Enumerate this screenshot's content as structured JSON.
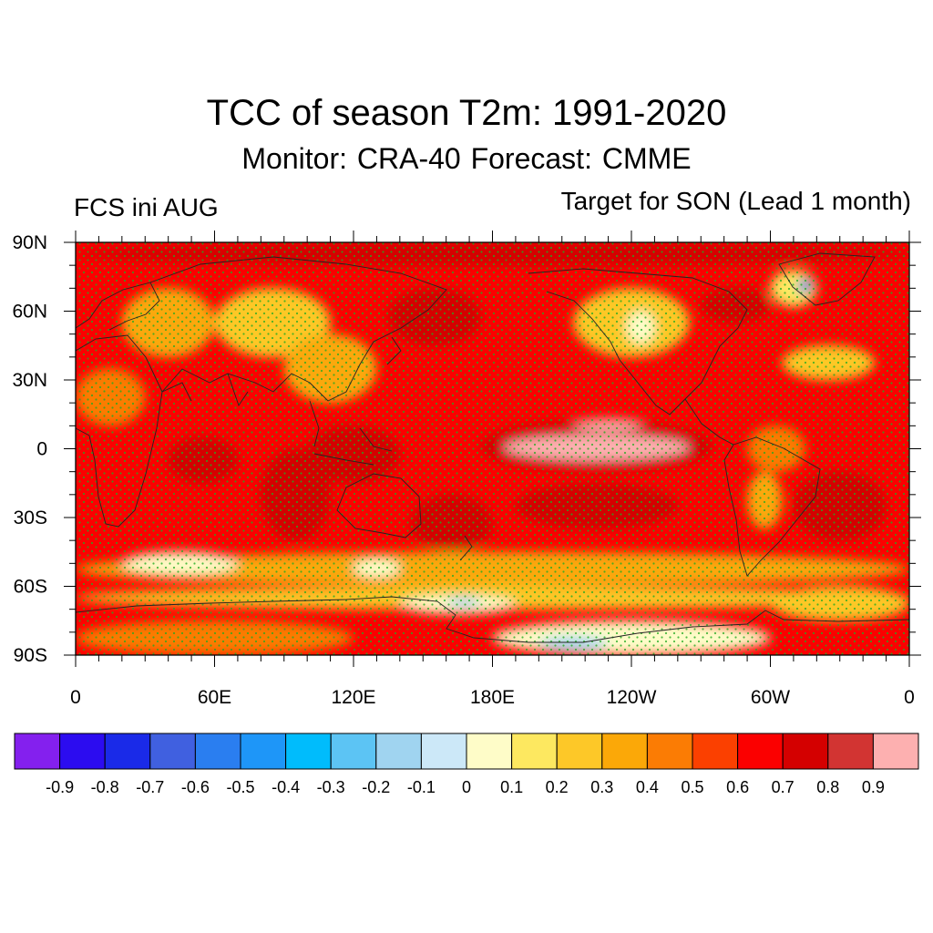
{
  "header": {
    "title": "TCC of season T2m: 1991-2020",
    "subtitle": "Monitor: CRA-40   Forecast: CMME",
    "left_string": "FCS ini AUG",
    "right_string": "Target for SON (Lead 1 month)"
  },
  "map": {
    "projection": "cylindrical-equidistant",
    "lon_range": [
      0,
      360
    ],
    "lat_range": [
      -90,
      90
    ],
    "y_ticks": [
      {
        "lat": 90,
        "label": "90N"
      },
      {
        "lat": 60,
        "label": "60N"
      },
      {
        "lat": 30,
        "label": "30N"
      },
      {
        "lat": 0,
        "label": "0"
      },
      {
        "lat": -30,
        "label": "30S"
      },
      {
        "lat": -60,
        "label": "60S"
      },
      {
        "lat": -90,
        "label": "90S"
      }
    ],
    "x_ticks": [
      {
        "lon": 0,
        "label": "0"
      },
      {
        "lon": 60,
        "label": "60E"
      },
      {
        "lon": 120,
        "label": "120E"
      },
      {
        "lon": 180,
        "label": "180E"
      },
      {
        "lon": 240,
        "label": "120W"
      },
      {
        "lon": 300,
        "label": "60W"
      },
      {
        "lon": 360,
        "label": "0"
      }
    ],
    "stipple_color": "#22aa22",
    "regions": [
      {
        "lon": [
          0,
          360
        ],
        "lat": [
          -90,
          90
        ],
        "value": 0.65
      },
      {
        "lon": [
          0,
          360
        ],
        "lat": [
          80,
          90
        ],
        "value": 0.72
      },
      {
        "lon": [
          20,
          60
        ],
        "lat": [
          40,
          70
        ],
        "value": 0.35
      },
      {
        "lon": [
          60,
          110
        ],
        "lat": [
          40,
          70
        ],
        "value": 0.25
      },
      {
        "lon": [
          90,
          130
        ],
        "lat": [
          20,
          50
        ],
        "value": 0.3
      },
      {
        "lon": [
          135,
          175
        ],
        "lat": [
          45,
          70
        ],
        "value": 0.75
      },
      {
        "lon": [
          215,
          265
        ],
        "lat": [
          40,
          70
        ],
        "value": 0.2
      },
      {
        "lon": [
          238,
          250
        ],
        "lat": [
          46,
          60
        ],
        "value": 0.05
      },
      {
        "lon": [
          270,
          300
        ],
        "lat": [
          55,
          70
        ],
        "value": 0.75
      },
      {
        "lon": [
          300,
          320
        ],
        "lat": [
          62,
          78
        ],
        "value": 0.15
      },
      {
        "lon": [
          312,
          318
        ],
        "lat": [
          68,
          74
        ],
        "value": -0.55
      },
      {
        "lon": [
          305,
          345
        ],
        "lat": [
          30,
          45
        ],
        "value": 0.25
      },
      {
        "lon": [
          0,
          30
        ],
        "lat": [
          10,
          35
        ],
        "value": 0.4
      },
      {
        "lon": [
          40,
          70
        ],
        "lat": [
          -15,
          5
        ],
        "value": 0.75
      },
      {
        "lon": [
          80,
          110
        ],
        "lat": [
          -40,
          0
        ],
        "value": 0.78
      },
      {
        "lon": [
          100,
          140
        ],
        "lat": [
          -15,
          10
        ],
        "value": 0.78
      },
      {
        "lon": [
          175,
          275
        ],
        "lat": [
          -10,
          12
        ],
        "value": 0.78
      },
      {
        "lon": [
          185,
          265
        ],
        "lat": [
          -5,
          6
        ],
        "value": 0.92
      },
      {
        "lon": [
          215,
          245
        ],
        "lat": [
          8,
          13
        ],
        "value": 0.9
      },
      {
        "lon": [
          145,
          180
        ],
        "lat": [
          -45,
          -20
        ],
        "value": 0.78
      },
      {
        "lon": [
          190,
          260
        ],
        "lat": [
          -35,
          -15
        ],
        "value": 0.72
      },
      {
        "lon": [
          290,
          315
        ],
        "lat": [
          -10,
          10
        ],
        "value": 0.45
      },
      {
        "lon": [
          290,
          305
        ],
        "lat": [
          -35,
          -10
        ],
        "value": 0.3
      },
      {
        "lon": [
          310,
          350
        ],
        "lat": [
          -40,
          -10
        ],
        "value": 0.72
      },
      {
        "lon": [
          0,
          360
        ],
        "lat": [
          -60,
          -45
        ],
        "value": 0.35
      },
      {
        "lon": [
          20,
          70
        ],
        "lat": [
          -55,
          -45
        ],
        "value": 0.05
      },
      {
        "lon": [
          120,
          140
        ],
        "lat": [
          -56,
          -48
        ],
        "value": 0.05
      },
      {
        "lon": [
          0,
          360
        ],
        "lat": [
          -70,
          -60
        ],
        "value": 0.25
      },
      {
        "lon": [
          140,
          190
        ],
        "lat": [
          -72,
          -64
        ],
        "value": 0.05
      },
      {
        "lon": [
          160,
          175
        ],
        "lat": [
          -69,
          -65
        ],
        "value": -0.2
      },
      {
        "lon": [
          180,
          300
        ],
        "lat": [
          -90,
          -75
        ],
        "value": 0.05
      },
      {
        "lon": [
          200,
          230
        ],
        "lat": [
          -88,
          -82
        ],
        "value": -0.2
      },
      {
        "lon": [
          0,
          120
        ],
        "lat": [
          -90,
          -75
        ],
        "value": 0.4
      },
      {
        "lon": [
          300,
          360
        ],
        "lat": [
          -75,
          -60
        ],
        "value": 0.2
      }
    ]
  },
  "colorbar": {
    "colors": [
      "#8420ee",
      "#2c0cf0",
      "#1a2ae8",
      "#4060e0",
      "#2a7ef0",
      "#1e96f8",
      "#00bcfc",
      "#5cc4f4",
      "#a0d4f0",
      "#cce8f8",
      "#fefcc8",
      "#fde860",
      "#fdc828",
      "#fba808",
      "#fb7c04",
      "#fb4000",
      "#fb0000",
      "#d40000",
      "#d23432",
      "#fdb0b0"
    ],
    "labels": [
      "-0.9",
      "-0.8",
      "-0.7",
      "-0.6",
      "-0.5",
      "-0.4",
      "-0.3",
      "-0.2",
      "-0.1",
      "0",
      "0.1",
      "0.2",
      "0.3",
      "0.4",
      "0.5",
      "0.6",
      "0.7",
      "0.8",
      "0.9"
    ],
    "levels": [
      -0.9,
      -0.8,
      -0.7,
      -0.6,
      -0.5,
      -0.4,
      -0.3,
      -0.2,
      -0.1,
      0,
      0.1,
      0.2,
      0.3,
      0.4,
      0.5,
      0.6,
      0.7,
      0.8,
      0.9
    ]
  }
}
